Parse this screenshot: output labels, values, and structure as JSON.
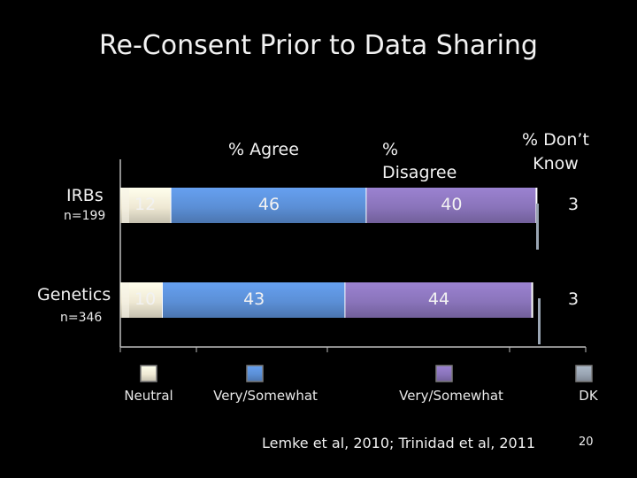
{
  "title": "Re-Consent Prior to Data Sharing",
  "headers": {
    "agree": "% Agree",
    "disagree_line1": "%",
    "disagree_line2": "Disagree",
    "dk_line1": "% Don’t",
    "dk_line2": "Know"
  },
  "rows": [
    {
      "name": "IRBs",
      "n": "n=199"
    },
    {
      "name": "Genetics",
      "n": "n=346"
    }
  ],
  "legend": [
    {
      "label": "Neutral",
      "color": "#efe9d4"
    },
    {
      "label": "Very/Somewhat",
      "color": "#5b8fd6"
    },
    {
      "label": "Very/Somewhat",
      "color": "#8a74bb"
    },
    {
      "label": "DK",
      "color": "#9aa5b3"
    }
  ],
  "citation": "Lemke et al, 2010; Trinidad et al, 2011",
  "page_number": "20",
  "chart_data": {
    "type": "bar",
    "orientation": "horizontal",
    "stacked": true,
    "title": "Re-Consent Prior to Data Sharing",
    "categories": [
      "IRBs",
      "Genetics"
    ],
    "series": [
      {
        "name": "Neutral",
        "values": [
          12,
          10
        ],
        "labels": [
          "12",
          "10"
        ],
        "color": "#efe9d4"
      },
      {
        "name": "% Agree (Very/Somewhat)",
        "values": [
          46,
          43
        ],
        "labels": [
          "46",
          "43"
        ],
        "color": "#5b8fd6"
      },
      {
        "name": "% Disagree (Very/Somewhat)",
        "values": [
          40,
          44
        ],
        "labels": [
          "40",
          "44"
        ],
        "color": "#8a74bb"
      },
      {
        "name": "% Don’t Know (DK)",
        "values": [
          3,
          3
        ],
        "labels": [
          "3",
          "3"
        ],
        "color": "#9aa5b3"
      }
    ]
  }
}
